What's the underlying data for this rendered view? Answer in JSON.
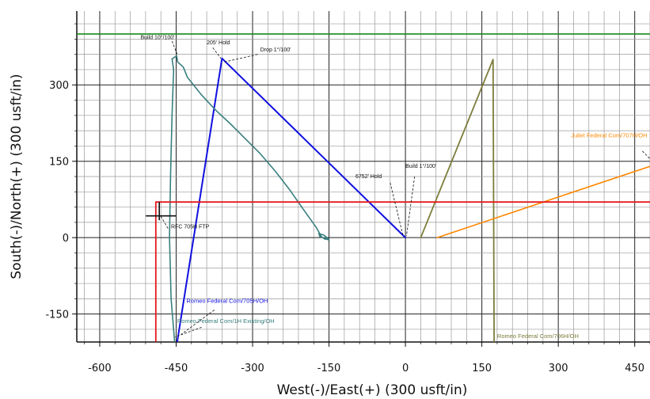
{
  "chart_data": {
    "type": "line",
    "xlabel": "West(-)/East(+) (300 usft/in)",
    "ylabel": "South(-)/North(+) (300 usft/in)",
    "xlim": [
      -645,
      480
    ],
    "ylim": [
      -205,
      445
    ],
    "minor_step": 30,
    "major_step": 150,
    "grid": true,
    "x_ticks": [
      {
        "v": -600,
        "label": "-600"
      },
      {
        "v": -450,
        "label": "-450"
      },
      {
        "v": -300,
        "label": "-300"
      },
      {
        "v": -150,
        "label": "-150"
      },
      {
        "v": 0,
        "label": "0"
      },
      {
        "v": 150,
        "label": "150"
      },
      {
        "v": 300,
        "label": "300"
      },
      {
        "v": 450,
        "label": "450"
      }
    ],
    "y_ticks": [
      {
        "v": 300,
        "label": "300"
      },
      {
        "v": 150,
        "label": "150"
      },
      {
        "v": 0,
        "label": "0"
      },
      {
        "v": -150,
        "label": "-150"
      }
    ],
    "series": [
      {
        "name": "Romeo Federal Com/705H/OH",
        "color": "#1010e0",
        "width": 2,
        "points": [
          [
            -448,
            -205
          ],
          [
            -360,
            352
          ],
          [
            0,
            0
          ]
        ]
      },
      {
        "name": "Romeo Federal Com/1H Existing/OH",
        "color": "#3a7f7f",
        "width": 1.6,
        "points": [
          [
            -453,
            -205
          ],
          [
            -460,
            -120
          ],
          [
            -463,
            0
          ],
          [
            -461,
            120
          ],
          [
            -458,
            240
          ],
          [
            -455,
            330
          ],
          [
            -458,
            351
          ],
          [
            -449,
            357
          ],
          [
            -447,
            345
          ],
          [
            -436,
            335
          ],
          [
            -428,
            315
          ],
          [
            -400,
            280
          ],
          [
            -372,
            250
          ],
          [
            -345,
            225
          ],
          [
            -315,
            195
          ],
          [
            -285,
            165
          ],
          [
            -255,
            130
          ],
          [
            -228,
            95
          ],
          [
            -200,
            55
          ],
          [
            -175,
            20
          ],
          [
            -165,
            2
          ],
          [
            -158,
            -3
          ],
          [
            -150,
            -3
          ],
          [
            -160,
            5
          ],
          [
            -170,
            8
          ],
          [
            -168,
            2
          ],
          [
            -158,
            -1
          ],
          [
            -150,
            -5
          ]
        ]
      },
      {
        "color": "#7d7d3c",
        "width": 1.8,
        "points": [
          [
            30,
            0
          ],
          [
            172,
            350
          ],
          [
            174,
            -205
          ]
        ]
      },
      {
        "name": "Juliet Federal Com/707H/OH",
        "color": "#ff8800",
        "width": 1.6,
        "points": [
          [
            62,
            0
          ],
          [
            480,
            140
          ]
        ]
      },
      {
        "color": "#e31a1c",
        "width": 1.8,
        "points": [
          [
            -490,
            -205
          ],
          [
            -490,
            70
          ],
          [
            480,
            70
          ]
        ]
      },
      {
        "color": "#1a8a1a",
        "width": 1.6,
        "points": [
          [
            -645,
            400
          ],
          [
            480,
            400
          ]
        ]
      }
    ],
    "annotations": [
      {
        "text": "Build 10°/100'",
        "tx": -520,
        "ty": 390,
        "anchor": "start",
        "lx1": -458,
        "ly1": 386,
        "lx2": -448,
        "ly2": 360
      },
      {
        "text": "205' Hold",
        "tx": -390,
        "ty": 380,
        "anchor": "start",
        "lx1": -378,
        "ly1": 373,
        "lx2": -362,
        "ly2": 352
      },
      {
        "text": "Drop 1°/100'",
        "tx": -285,
        "ty": 366,
        "anchor": "start",
        "lx1": -290,
        "ly1": 360,
        "lx2": -355,
        "ly2": 345
      },
      {
        "text": "6752' Hold",
        "tx": -98,
        "ty": 117,
        "anchor": "start",
        "lx1": -30,
        "ly1": 108,
        "lx2": -5,
        "ly2": 5
      },
      {
        "text": "Build 1°/100'",
        "tx": 0,
        "ty": 137,
        "anchor": "start",
        "lx1": 18,
        "ly1": 120,
        "lx2": 2,
        "ly2": 3
      },
      {
        "text": "RFC 705H FTP",
        "tx": -460,
        "ty": 18,
        "anchor": "start",
        "lx1": -466,
        "ly1": 18,
        "lx2": -480,
        "ly2": 42
      }
    ],
    "well_labels": [
      {
        "text": "Romeo Federal Com/705H/OH",
        "color": "#1010e0",
        "tx": -430,
        "ty": -128,
        "lx1": -375,
        "ly1": -142,
        "lx2": -440,
        "ly2": -190
      },
      {
        "text": "Romeo Federal Com/1H Existing/OH",
        "color": "#3a7f7f",
        "tx": -448,
        "ty": -168,
        "lx1": -400,
        "ly1": -176,
        "lx2": -452,
        "ly2": -195
      },
      {
        "text": "Juliet Federal Com/707H/OH",
        "color": "#ff8800",
        "tx": 325,
        "ty": 197,
        "lx1": 465,
        "ly1": 170,
        "lx2": 480,
        "ly2": 155
      },
      {
        "text": "Romeo Federal Com/706H/OH",
        "color": "#7d7d3c",
        "tx": 180,
        "ty": -197
      }
    ]
  }
}
